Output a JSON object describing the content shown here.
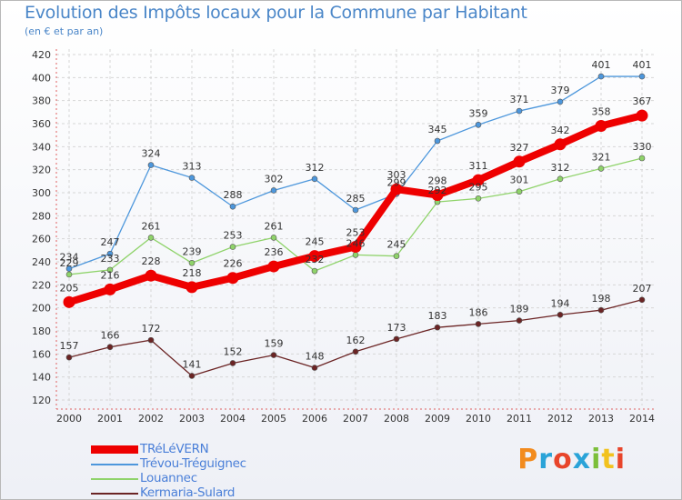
{
  "header": {
    "title": "Evolution des Impôts locaux pour la Commune par Habitant",
    "subtitle": "(en € et par an)"
  },
  "brand": {
    "text": "Proxiti",
    "colors": [
      "#f28b1e",
      "#2aa3d8",
      "#e8452b",
      "#2aa3d8",
      "#7cbf3a",
      "#f2c21e",
      "#e8452b"
    ]
  },
  "chart_data": {
    "type": "line",
    "title": "Evolution des Impôts locaux pour la Commune par Habitant",
    "subtitle": "(en € et par an)",
    "categories": [
      "2000",
      "2001",
      "2002",
      "2003",
      "2004",
      "2005",
      "2006",
      "2007",
      "2008",
      "2009",
      "2010",
      "2011",
      "2012",
      "2013",
      "2014"
    ],
    "ylim": [
      120,
      420
    ],
    "yticks": [
      120,
      140,
      160,
      180,
      200,
      220,
      240,
      260,
      280,
      300,
      320,
      340,
      360,
      380,
      400,
      420
    ],
    "grid": true,
    "legend_position": "bottom-left",
    "series": [
      {
        "name": "Trévou-Tréguignec",
        "color": "#4d97dc",
        "values": [
          234,
          247,
          324,
          313,
          288,
          302,
          312,
          285,
          299,
          345,
          359,
          371,
          379,
          401,
          401
        ]
      },
      {
        "name": "Louannec",
        "color": "#8fd36a",
        "values": [
          229,
          233,
          261,
          239,
          253,
          261,
          232,
          246,
          245,
          292,
          295,
          301,
          312,
          321,
          330
        ]
      },
      {
        "name": "Kermaria-Sulard",
        "color": "#6b2424",
        "values": [
          157,
          166,
          172,
          141,
          152,
          159,
          148,
          162,
          173,
          183,
          186,
          189,
          194,
          198,
          207
        ]
      },
      {
        "name": "TRéLéVERN",
        "color": "#ee0000",
        "values": [
          205,
          216,
          228,
          218,
          226,
          236,
          245,
          253,
          303,
          298,
          311,
          327,
          342,
          358,
          367
        ]
      }
    ],
    "labels": [
      {
        "series": "Trévou-Tréguignec",
        "text": [
          "234",
          "247",
          "324",
          "313",
          "288",
          "302",
          "312",
          "285",
          "299",
          "345",
          "359",
          "371",
          "379",
          "401",
          "401"
        ]
      },
      {
        "series": "Louannec",
        "text": [
          "229",
          "233",
          "261",
          "239",
          "253",
          "261",
          "232",
          "246",
          "245",
          "292",
          "295",
          "301",
          "312",
          "321",
          "330"
        ]
      },
      {
        "series": "Kermaria-Sulard",
        "text": [
          "157",
          "166",
          "172",
          "141",
          "152",
          "159",
          "148",
          "162",
          "173",
          "183",
          "186",
          "189",
          "194",
          "198",
          "207"
        ]
      },
      {
        "series": "TRéLéVERN",
        "text": [
          "205",
          "216",
          "228",
          "218",
          "226",
          "236",
          "245",
          "253",
          "303",
          "298",
          "311",
          "327",
          "342",
          "358",
          "367"
        ]
      }
    ]
  },
  "legend": {
    "items": [
      {
        "label": "TRéLéVERN",
        "color": "#ee0000",
        "thick": true
      },
      {
        "label": "Trévou-Tréguignec",
        "color": "#4d97dc",
        "thick": false
      },
      {
        "label": "Louannec",
        "color": "#8fd36a",
        "thick": false
      },
      {
        "label": "Kermaria-Sulard",
        "color": "#6b2424",
        "thick": false
      }
    ]
  }
}
